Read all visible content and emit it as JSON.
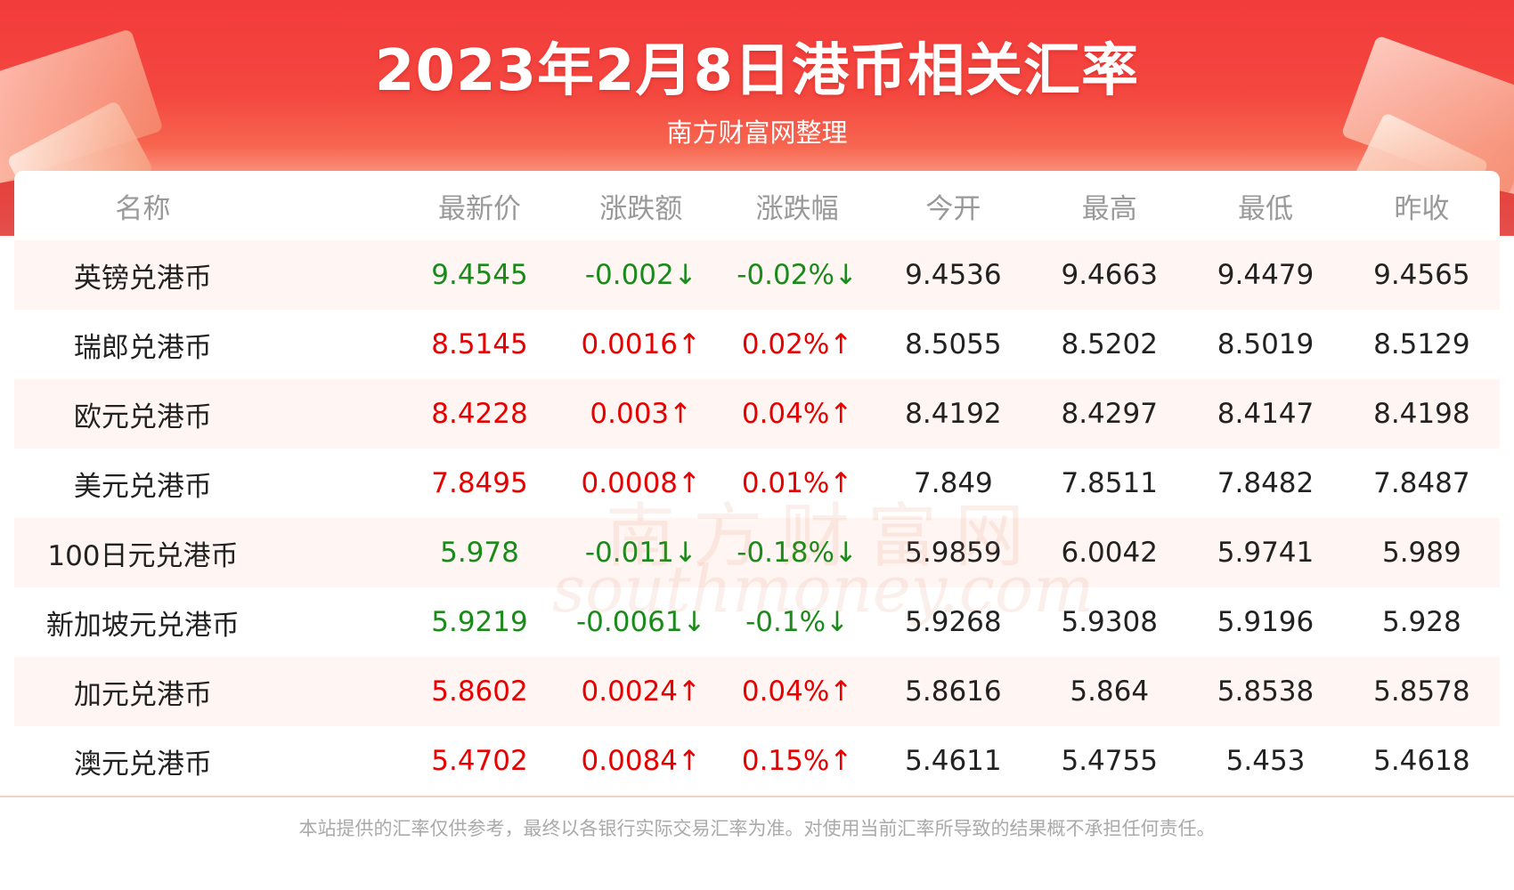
{
  "header": {
    "title": "2023年2月8日港币相关汇率",
    "subtitle": "南方财富网整理"
  },
  "table": {
    "columns": [
      "名称",
      "最新价",
      "涨跌额",
      "涨跌幅",
      "今开",
      "最高",
      "最低",
      "昨收"
    ],
    "rows": [
      {
        "name": "英镑兑港币",
        "latest": "9.4545",
        "change": "-0.002↓",
        "change_pct": "-0.02%↓",
        "open": "9.4536",
        "high": "9.4663",
        "low": "9.4479",
        "prev_close": "9.4565",
        "direction": "down"
      },
      {
        "name": "瑞郎兑港币",
        "latest": "8.5145",
        "change": "0.0016↑",
        "change_pct": "0.02%↑",
        "open": "8.5055",
        "high": "8.5202",
        "low": "8.5019",
        "prev_close": "8.5129",
        "direction": "up"
      },
      {
        "name": "欧元兑港币",
        "latest": "8.4228",
        "change": "0.003↑",
        "change_pct": "0.04%↑",
        "open": "8.4192",
        "high": "8.4297",
        "low": "8.4147",
        "prev_close": "8.4198",
        "direction": "up"
      },
      {
        "name": "美元兑港币",
        "latest": "7.8495",
        "change": "0.0008↑",
        "change_pct": "0.01%↑",
        "open": "7.849",
        "high": "7.8511",
        "low": "7.8482",
        "prev_close": "7.8487",
        "direction": "up"
      },
      {
        "name": "100日元兑港币",
        "latest": "5.978",
        "change": "-0.011↓",
        "change_pct": "-0.18%↓",
        "open": "5.9859",
        "high": "6.0042",
        "low": "5.9741",
        "prev_close": "5.989",
        "direction": "down"
      },
      {
        "name": "新加坡元兑港币",
        "latest": "5.9219",
        "change": "-0.0061↓",
        "change_pct": "-0.1%↓",
        "open": "5.9268",
        "high": "5.9308",
        "low": "5.9196",
        "prev_close": "5.928",
        "direction": "down"
      },
      {
        "name": "加元兑港币",
        "latest": "5.8602",
        "change": "0.0024↑",
        "change_pct": "0.04%↑",
        "open": "5.8616",
        "high": "5.864",
        "low": "5.8538",
        "prev_close": "5.8578",
        "direction": "up"
      },
      {
        "name": "澳元兑港币",
        "latest": "5.4702",
        "change": "0.0084↑",
        "change_pct": "0.15%↑",
        "open": "5.4611",
        "high": "5.4755",
        "low": "5.453",
        "prev_close": "5.4618",
        "direction": "up"
      }
    ]
  },
  "watermark": {
    "cn": "南方财富网",
    "en": "southmoney.com"
  },
  "footer": {
    "disclaimer": "本站提供的汇率仅供参考，最终以各银行实际交易汇率为准。对使用当前汇率所导致的结果概不承担任何责任。"
  },
  "colors": {
    "up": "#e60000",
    "down": "#1a8a1a",
    "banner": "#f23b3b",
    "stripe": "#fff5f2"
  }
}
